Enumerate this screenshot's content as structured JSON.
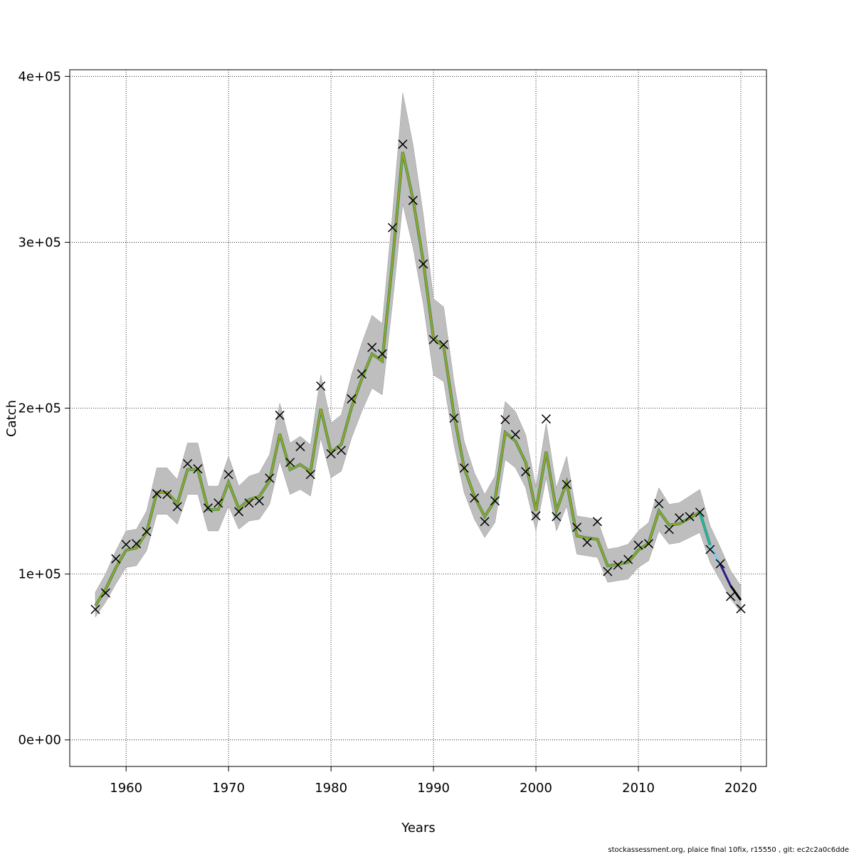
{
  "chart_data": {
    "type": "line",
    "title": "",
    "xlabel": "Years",
    "ylabel": "Catch",
    "xlim": [
      1954.5,
      2022.5
    ],
    "ylim": [
      -16000,
      404000
    ],
    "grid": true,
    "xticks": [
      1960,
      1970,
      1980,
      1990,
      2000,
      2010,
      2020
    ],
    "xtick_labels": [
      "1960",
      "1970",
      "1980",
      "1990",
      "2000",
      "2010",
      "2020"
    ],
    "yticks": [
      0,
      100000,
      200000,
      300000,
      400000
    ],
    "ytick_labels": [
      "0e+00",
      "1e+05",
      "2e+05",
      "3e+05",
      "4e+05"
    ],
    "years": [
      1957,
      1958,
      1959,
      1960,
      1961,
      1962,
      1963,
      1964,
      1965,
      1966,
      1967,
      1968,
      1969,
      1970,
      1971,
      1972,
      1973,
      1974,
      1975,
      1976,
      1977,
      1978,
      1979,
      1980,
      1981,
      1982,
      1983,
      1984,
      1985,
      1986,
      1987,
      1988,
      1989,
      1990,
      1991,
      1992,
      1993,
      1994,
      1995,
      1996,
      1997,
      1998,
      1999,
      2000,
      2001,
      2002,
      2003,
      2004,
      2005,
      2006,
      2007,
      2008,
      2009,
      2010,
      2011,
      2012,
      2013,
      2014,
      2015,
      2016,
      2017,
      2018,
      2019,
      2020
    ],
    "observed": [
      78700,
      88600,
      109200,
      117800,
      118300,
      125600,
      148400,
      148000,
      140600,
      166500,
      163400,
      139800,
      142800,
      160000,
      137600,
      142800,
      144100,
      157800,
      195700,
      167300,
      176800,
      160000,
      213300,
      172500,
      174600,
      205600,
      220600,
      236600,
      232700,
      308800,
      359100,
      325200,
      286900,
      241300,
      238300,
      194000,
      163900,
      145800,
      131600,
      144100,
      193100,
      184100,
      161700,
      135100,
      193500,
      134600,
      154000,
      128200,
      119100,
      131600,
      101500,
      105400,
      108800,
      117400,
      118300,
      142400,
      126900,
      133800,
      134600,
      137200,
      114800,
      106200,
      86500,
      79100
    ],
    "fitted": [
      80900,
      90800,
      103700,
      114400,
      115700,
      125200,
      149200,
      149200,
      142400,
      163000,
      163000,
      138900,
      138900,
      155300,
      139400,
      144900,
      146700,
      156100,
      184500,
      163000,
      166000,
      161700,
      199600,
      173300,
      178100,
      200400,
      217600,
      232700,
      228400,
      288600,
      354400,
      326000,
      288600,
      242200,
      237000,
      196100,
      163900,
      146700,
      134600,
      144500,
      185400,
      180200,
      167300,
      138100,
      173800,
      138100,
      155300,
      123000,
      121700,
      120900,
      104900,
      105800,
      107100,
      114400,
      118700,
      138100,
      129500,
      130300,
      133800,
      137200,
      117400,
      105800,
      92900,
      84300
    ],
    "ci_upper": [
      89000,
      100000,
      114000,
      126000,
      127000,
      138000,
      164000,
      164000,
      157000,
      179000,
      179000,
      153000,
      153000,
      171000,
      153000,
      159000,
      161000,
      172000,
      203000,
      179000,
      183000,
      178000,
      220000,
      191000,
      196000,
      220000,
      239000,
      256000,
      251000,
      317000,
      390000,
      359000,
      317000,
      266000,
      261000,
      216000,
      180000,
      161000,
      148000,
      159000,
      204000,
      198000,
      184000,
      152000,
      191000,
      152000,
      171000,
      135000,
      134000,
      133000,
      115000,
      116000,
      118000,
      126000,
      131000,
      152000,
      142000,
      143000,
      147000,
      151000,
      129000,
      116000,
      102000,
      93000
    ],
    "ci_lower": [
      74000,
      83000,
      94000,
      104000,
      105000,
      114000,
      136000,
      136000,
      130000,
      148000,
      148000,
      126000,
      126000,
      141000,
      127000,
      132000,
      133000,
      142000,
      168000,
      148000,
      151000,
      147000,
      182000,
      158000,
      162000,
      182000,
      198000,
      212000,
      208000,
      263000,
      323000,
      297000,
      263000,
      220000,
      216000,
      178000,
      149000,
      133000,
      122000,
      131000,
      169000,
      164000,
      152000,
      126000,
      158000,
      126000,
      141000,
      112000,
      111000,
      110000,
      95000,
      96000,
      97000,
      104000,
      108000,
      126000,
      118000,
      119000,
      122000,
      125000,
      107000,
      96000,
      85000,
      77000
    ],
    "colors": {
      "band": "#bebebe",
      "fitted": "#9aa22a",
      "fitted_under": "#2e8b57",
      "retro_segments": [
        "#2ab0a0",
        "#7ec8f0",
        "#2a1a8a",
        "#000000"
      ],
      "marker": "#000000"
    },
    "marker": "x"
  },
  "footer": "stockassessment.org, plaice  final  10fix, r15550 , git: ec2c2a0c6dde"
}
